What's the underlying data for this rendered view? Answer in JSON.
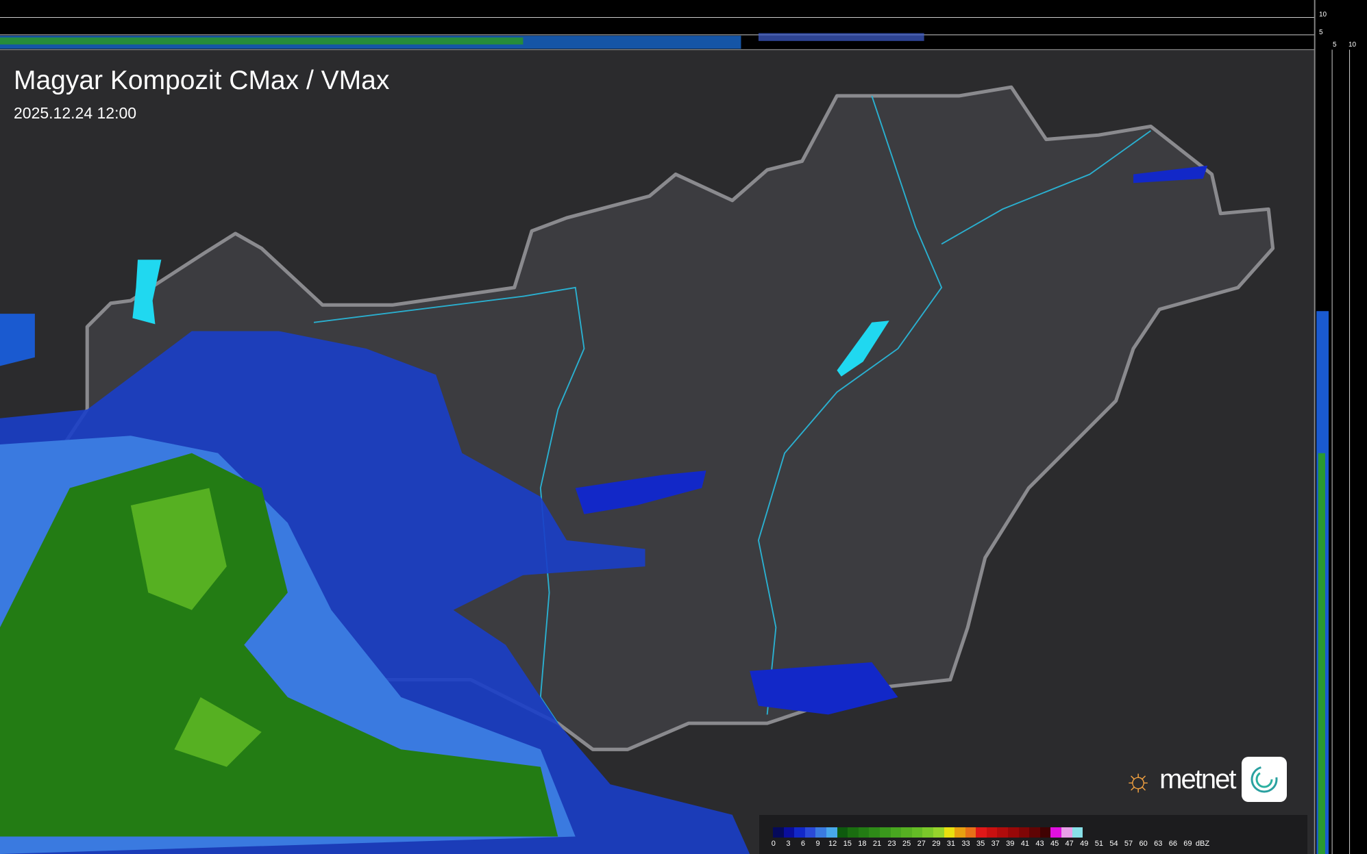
{
  "header": {
    "title": "Magyar Kompozit CMax / VMax",
    "timestamp": "2025.12.24 12:00"
  },
  "side_axis": {
    "top_ticks": [
      "10",
      "5"
    ],
    "right_ticks": [
      "5",
      "10"
    ]
  },
  "legend": {
    "unit": "dBZ",
    "labels": [
      "0",
      "3",
      "6",
      "9",
      "12",
      "15",
      "18",
      "21",
      "23",
      "25",
      "27",
      "29",
      "31",
      "33",
      "35",
      "37",
      "39",
      "41",
      "43",
      "45",
      "47",
      "49",
      "51",
      "54",
      "57",
      "60",
      "63",
      "66",
      "69"
    ],
    "colors": [
      "#050a5a",
      "#0a0e9c",
      "#1228c8",
      "#2a4ad8",
      "#3a7ae0",
      "#48a8ea",
      "#0e5a0e",
      "#1a6e10",
      "#237c14",
      "#2e8a18",
      "#3a981c",
      "#48a620",
      "#56b022",
      "#64bc26",
      "#7ac82a",
      "#96d42c",
      "#e8e010",
      "#e8a010",
      "#e87018",
      "#e01818",
      "#c81010",
      "#b00c0c",
      "#980808",
      "#800606",
      "#600404",
      "#400202",
      "#e010e0",
      "#e8a0e8",
      "#88e0e8"
    ]
  },
  "logo": {
    "text": "metnet"
  },
  "colors": {
    "background": "#2b2b2d",
    "country": "#3c3c40",
    "border": "#8a8a8e",
    "river": "#2ab0d0",
    "lake": "#20d8f0"
  }
}
